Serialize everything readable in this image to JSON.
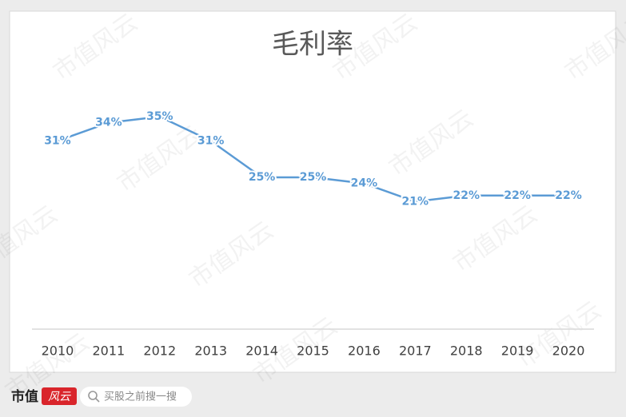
{
  "chart_data": {
    "type": "line",
    "title": "毛利率",
    "categories": [
      "2010",
      "2011",
      "2012",
      "2013",
      "2014",
      "2015",
      "2016",
      "2017",
      "2018",
      "2019",
      "2020"
    ],
    "values": [
      31,
      34,
      35,
      31,
      25,
      25,
      24,
      21,
      22,
      22,
      22
    ],
    "value_labels": [
      "31%",
      "34%",
      "35%",
      "31%",
      "25%",
      "25%",
      "24%",
      "21%",
      "22%",
      "22%",
      "22%"
    ],
    "color": "#5b9bd5",
    "ylim": [
      0,
      40
    ]
  },
  "watermark": "市值风云",
  "footer": {
    "brand_left": "市值",
    "brand_right": "风云",
    "search_placeholder": "买股之前搜一搜"
  }
}
